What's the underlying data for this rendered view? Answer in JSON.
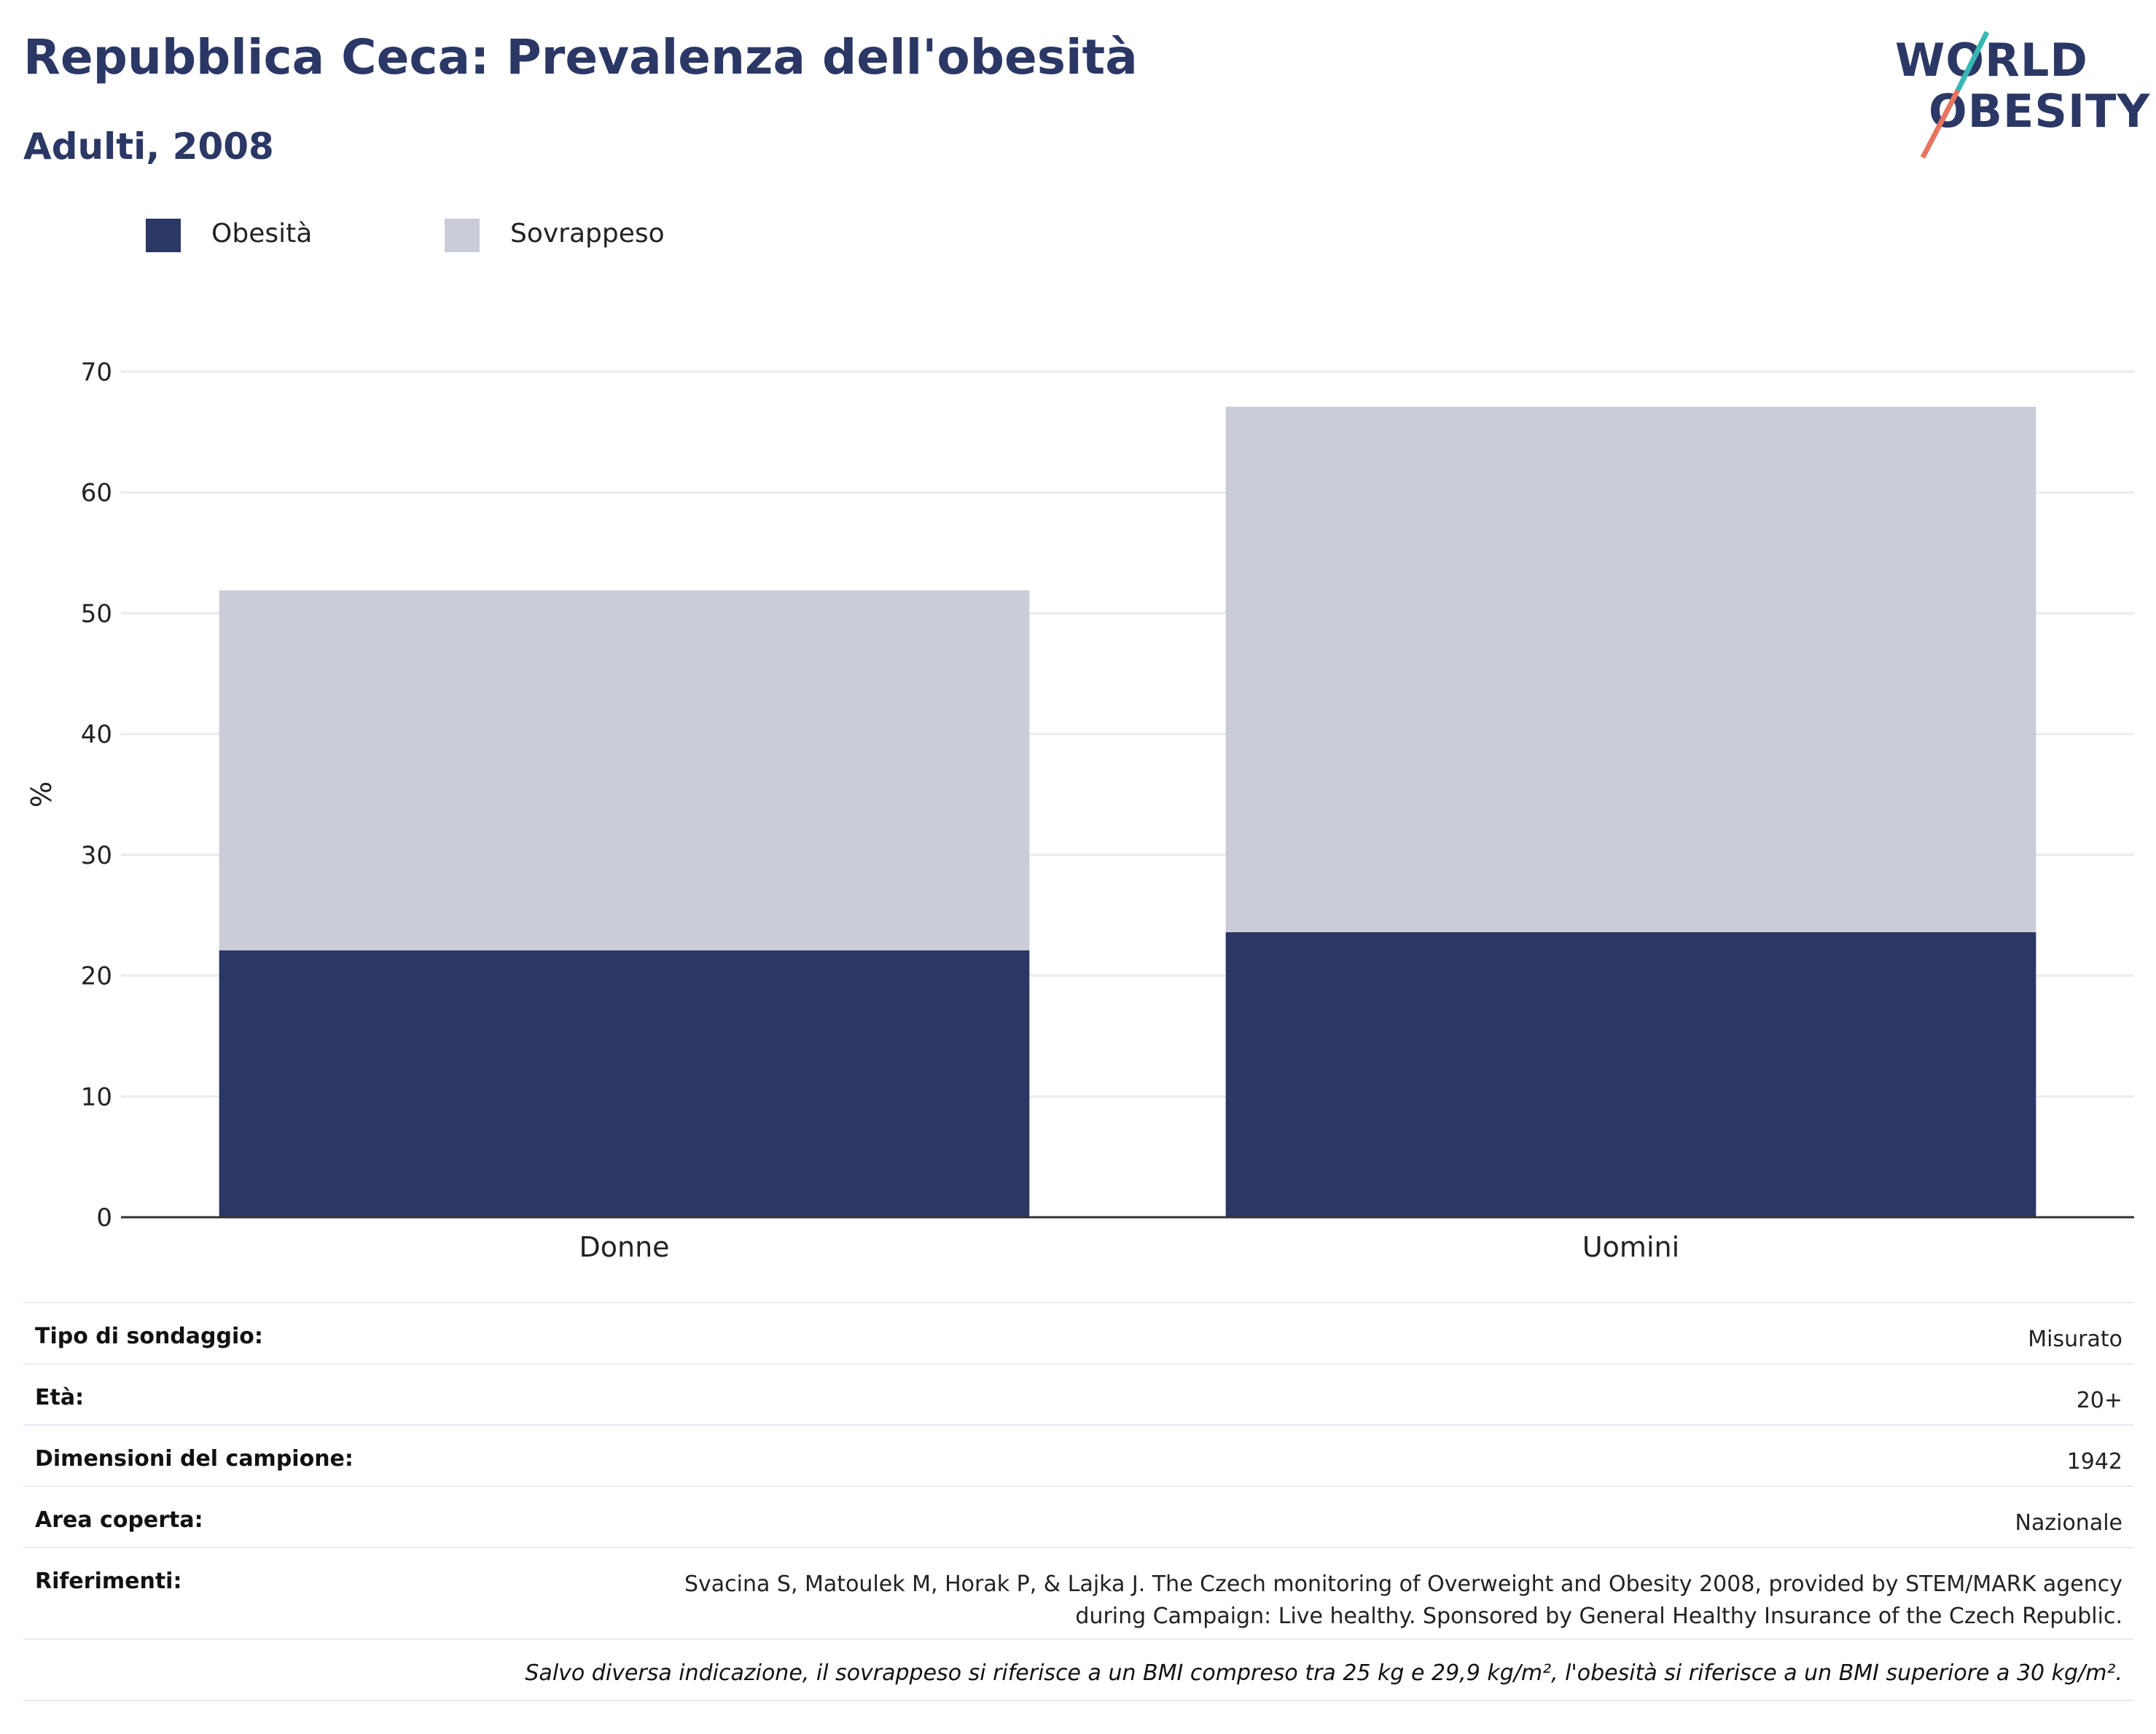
{
  "title": "Repubblica Ceca: Prevalenza dell'obesità",
  "subtitle": "Adulti, 2008",
  "logo": {
    "line1": "WORLD",
    "line2": "OBESITY"
  },
  "legend": [
    {
      "label": "Obesità",
      "color": "#2b3765"
    },
    {
      "label": "Sovrappeso",
      "color": "#cacdd8"
    }
  ],
  "chart_data": {
    "type": "bar",
    "stacked": true,
    "categories": [
      "Donne",
      "Uomini"
    ],
    "series": [
      {
        "name": "Obesità",
        "color": "#2b3765",
        "values": [
          22.1,
          23.6
        ]
      },
      {
        "name": "Sovrappeso",
        "color": "#cacdd8",
        "values": [
          29.8,
          43.5
        ]
      }
    ],
    "ylabel": "%",
    "ylim": [
      0,
      70
    ],
    "yticks": [
      0,
      10,
      20,
      30,
      40,
      50,
      60,
      70
    ],
    "grid": true,
    "legend_position": "top-left"
  },
  "meta": {
    "rows": [
      {
        "key": "Tipo di sondaggio:",
        "value": "Misurato"
      },
      {
        "key": "Età:",
        "value": "20+"
      },
      {
        "key": "Dimensioni del campione:",
        "value": "1942"
      },
      {
        "key": "Area coperta:",
        "value": "Nazionale"
      }
    ],
    "references_key": "Riferimenti:",
    "references_line1": "Svacina S, Matoulek M, Horak P, & Lajka J. The Czech monitoring of Overweight and Obesity 2008, provided by STEM/MARK agency",
    "references_line2": "during Campaign: Live healthy. Sponsored by General Healthy Insurance of the Czech Republic.",
    "note": "Salvo diversa indicazione, il sovrappeso si riferisce a un BMI compreso tra 25 kg e 29,9 kg/m², l'obesità si riferisce a un BMI superiore a 30 kg/m²."
  }
}
